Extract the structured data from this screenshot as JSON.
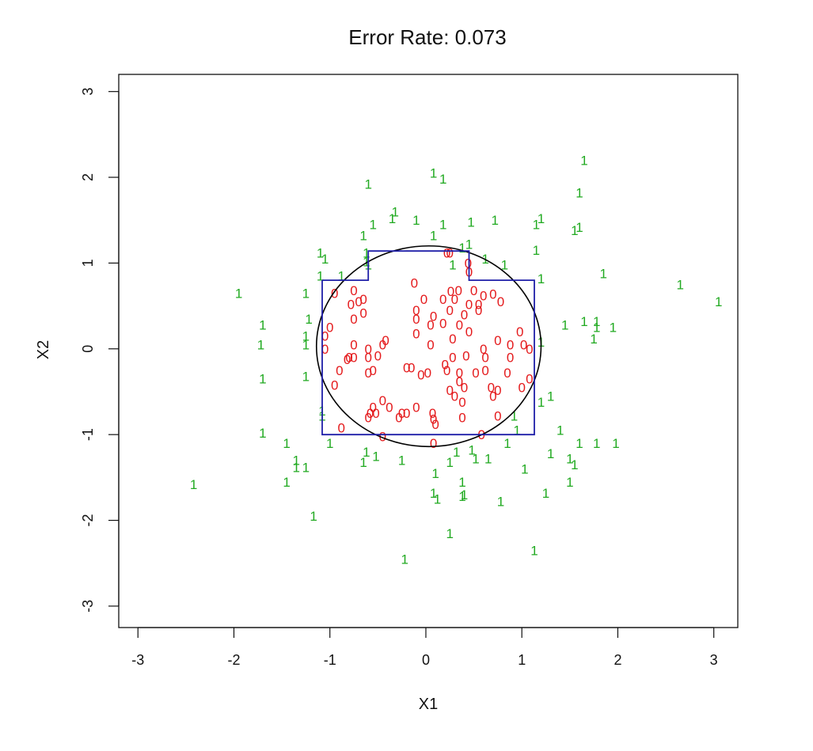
{
  "chart_data": {
    "type": "scatter",
    "title": "Error Rate: 0.073",
    "xlabel": "X1",
    "ylabel": "X2",
    "xlim": [
      -3.2,
      3.25
    ],
    "ylim": [
      -3.25,
      3.2
    ],
    "xticks": [
      "-3",
      "-2",
      "-1",
      "0",
      "1",
      "2",
      "3"
    ],
    "yticks": [
      "-3",
      "-2",
      "-1",
      "0",
      "1",
      "2",
      "3"
    ],
    "grid": false,
    "colors": {
      "class0": "#e41a1c",
      "class1": "#22aa22",
      "circle": "#000000",
      "boundary": "#1f1fa8"
    },
    "circle": {
      "cx": 0.03,
      "cy": 0.03,
      "r": 1.17
    },
    "boundary_path": [
      [
        -1.08,
        0.8
      ],
      [
        -0.6,
        0.8
      ],
      [
        -0.6,
        1.14
      ],
      [
        0.45,
        1.14
      ],
      [
        0.45,
        0.8
      ],
      [
        1.13,
        0.8
      ],
      [
        1.13,
        -1.0
      ],
      [
        -1.08,
        -1.0
      ],
      [
        -1.08,
        0.8
      ]
    ],
    "series": [
      {
        "label": "0",
        "points": [
          [
            0.22,
            1.12
          ],
          [
            0.25,
            1.12
          ],
          [
            0.44,
            1.0
          ],
          [
            0.45,
            0.9
          ],
          [
            -0.12,
            0.77
          ],
          [
            0.26,
            0.67
          ],
          [
            0.34,
            0.68
          ],
          [
            0.5,
            0.68
          ],
          [
            0.6,
            0.62
          ],
          [
            0.7,
            0.64
          ],
          [
            -0.95,
            0.65
          ],
          [
            -0.75,
            0.68
          ],
          [
            -0.65,
            0.58
          ],
          [
            -0.7,
            0.55
          ],
          [
            -0.78,
            0.52
          ],
          [
            -0.65,
            0.42
          ],
          [
            0.18,
            0.58
          ],
          [
            0.3,
            0.58
          ],
          [
            0.45,
            0.52
          ],
          [
            0.55,
            0.52
          ],
          [
            0.78,
            0.55
          ],
          [
            -0.02,
            0.58
          ],
          [
            -0.1,
            0.45
          ],
          [
            0.25,
            0.45
          ],
          [
            0.4,
            0.4
          ],
          [
            0.55,
            0.45
          ],
          [
            0.08,
            0.38
          ],
          [
            -0.1,
            0.35
          ],
          [
            -0.75,
            0.35
          ],
          [
            -1.0,
            0.25
          ],
          [
            -1.05,
            0.15
          ],
          [
            0.45,
            0.2
          ],
          [
            0.05,
            0.28
          ],
          [
            0.18,
            0.3
          ],
          [
            0.35,
            0.28
          ],
          [
            0.98,
            0.2
          ],
          [
            -0.1,
            0.18
          ],
          [
            -0.75,
            0.05
          ],
          [
            -0.6,
            0.0
          ],
          [
            -0.45,
            0.05
          ],
          [
            -0.42,
            0.1
          ],
          [
            0.05,
            0.05
          ],
          [
            0.28,
            0.12
          ],
          [
            0.75,
            0.1
          ],
          [
            0.88,
            0.05
          ],
          [
            1.02,
            0.05
          ],
          [
            1.08,
            0.0
          ],
          [
            -1.05,
            0.0
          ],
          [
            -0.8,
            -0.1
          ],
          [
            -0.75,
            -0.1
          ],
          [
            -0.6,
            -0.1
          ],
          [
            -0.5,
            -0.08
          ],
          [
            0.28,
            -0.1
          ],
          [
            0.42,
            -0.08
          ],
          [
            0.6,
            0.0
          ],
          [
            0.62,
            -0.1
          ],
          [
            0.88,
            -0.1
          ],
          [
            -0.9,
            -0.25
          ],
          [
            -0.82,
            -0.12
          ],
          [
            -0.6,
            -0.28
          ],
          [
            -0.55,
            -0.25
          ],
          [
            -0.2,
            -0.22
          ],
          [
            -0.15,
            -0.22
          ],
          [
            -0.05,
            -0.3
          ],
          [
            0.02,
            -0.28
          ],
          [
            0.2,
            -0.18
          ],
          [
            0.22,
            -0.25
          ],
          [
            0.35,
            -0.28
          ],
          [
            0.52,
            -0.28
          ],
          [
            0.62,
            -0.25
          ],
          [
            0.85,
            -0.28
          ],
          [
            1.08,
            -0.35
          ],
          [
            -0.95,
            -0.42
          ],
          [
            0.35,
            -0.38
          ],
          [
            0.4,
            -0.45
          ],
          [
            0.68,
            -0.45
          ],
          [
            0.75,
            -0.48
          ],
          [
            1.0,
            -0.45
          ],
          [
            0.25,
            -0.48
          ],
          [
            0.3,
            -0.55
          ],
          [
            0.38,
            -0.62
          ],
          [
            0.7,
            -0.55
          ],
          [
            -0.45,
            -0.6
          ],
          [
            -0.55,
            -0.68
          ],
          [
            -0.38,
            -0.68
          ],
          [
            -0.1,
            -0.68
          ],
          [
            -0.52,
            -0.75
          ],
          [
            -0.58,
            -0.75
          ],
          [
            -0.6,
            -0.8
          ],
          [
            -0.25,
            -0.75
          ],
          [
            -0.2,
            -0.75
          ],
          [
            -0.28,
            -0.8
          ],
          [
            0.07,
            -0.75
          ],
          [
            0.08,
            -0.82
          ],
          [
            0.1,
            -0.88
          ],
          [
            0.38,
            -0.8
          ],
          [
            0.75,
            -0.78
          ],
          [
            -0.88,
            -0.92
          ],
          [
            -0.45,
            -1.02
          ],
          [
            0.08,
            -1.1
          ],
          [
            0.58,
            -1.0
          ]
        ]
      },
      {
        "label": "1",
        "points": [
          [
            1.65,
            2.2
          ],
          [
            0.08,
            2.05
          ],
          [
            0.18,
            1.98
          ],
          [
            -0.6,
            1.92
          ],
          [
            1.6,
            1.82
          ],
          [
            -0.32,
            1.6
          ],
          [
            -0.35,
            1.52
          ],
          [
            -0.1,
            1.5
          ],
          [
            0.18,
            1.45
          ],
          [
            0.47,
            1.48
          ],
          [
            0.72,
            1.5
          ],
          [
            1.2,
            1.52
          ],
          [
            1.15,
            1.45
          ],
          [
            1.6,
            1.42
          ],
          [
            1.55,
            1.38
          ],
          [
            -0.55,
            1.45
          ],
          [
            -0.65,
            1.32
          ],
          [
            0.08,
            1.32
          ],
          [
            -0.62,
            1.12
          ],
          [
            1.15,
            1.15
          ],
          [
            0.38,
            1.18
          ],
          [
            0.45,
            1.22
          ],
          [
            -1.1,
            1.12
          ],
          [
            -1.05,
            1.05
          ],
          [
            -0.62,
            1.02
          ],
          [
            -0.6,
            0.98
          ],
          [
            0.62,
            1.05
          ],
          [
            0.82,
            0.98
          ],
          [
            0.28,
            0.98
          ],
          [
            -1.1,
            0.85
          ],
          [
            -0.88,
            0.85
          ],
          [
            1.2,
            0.82
          ],
          [
            1.85,
            0.88
          ],
          [
            2.65,
            0.75
          ],
          [
            3.05,
            0.55
          ],
          [
            -1.95,
            0.65
          ],
          [
            -1.25,
            0.65
          ],
          [
            -1.22,
            0.35
          ],
          [
            -1.7,
            0.28
          ],
          [
            -1.25,
            0.15
          ],
          [
            -1.72,
            0.05
          ],
          [
            -1.25,
            0.05
          ],
          [
            1.45,
            0.28
          ],
          [
            1.65,
            0.32
          ],
          [
            1.78,
            0.32
          ],
          [
            1.78,
            0.25
          ],
          [
            1.95,
            0.25
          ],
          [
            1.75,
            0.12
          ],
          [
            1.2,
            0.08
          ],
          [
            -1.7,
            -0.35
          ],
          [
            -1.25,
            -0.32
          ],
          [
            1.3,
            -0.55
          ],
          [
            1.2,
            -0.62
          ],
          [
            -1.08,
            -0.72
          ],
          [
            -1.08,
            -0.78
          ],
          [
            0.92,
            -0.78
          ],
          [
            0.95,
            -0.95
          ],
          [
            1.4,
            -0.95
          ],
          [
            -1.7,
            -0.98
          ],
          [
            -1.45,
            -1.1
          ],
          [
            -1.0,
            -1.1
          ],
          [
            -0.62,
            -1.2
          ],
          [
            -0.52,
            -1.25
          ],
          [
            -0.25,
            -1.3
          ],
          [
            0.32,
            -1.2
          ],
          [
            0.48,
            -1.18
          ],
          [
            0.52,
            -1.28
          ],
          [
            0.85,
            -1.1
          ],
          [
            1.6,
            -1.1
          ],
          [
            1.78,
            -1.1
          ],
          [
            1.98,
            -1.1
          ],
          [
            1.3,
            -1.22
          ],
          [
            1.5,
            -1.28
          ],
          [
            1.55,
            -1.35
          ],
          [
            -1.35,
            -1.3
          ],
          [
            -1.35,
            -1.38
          ],
          [
            -1.25,
            -1.38
          ],
          [
            -0.65,
            -1.32
          ],
          [
            0.25,
            -1.32
          ],
          [
            0.65,
            -1.28
          ],
          [
            0.1,
            -1.45
          ],
          [
            0.38,
            -1.55
          ],
          [
            1.03,
            -1.4
          ],
          [
            1.5,
            -1.55
          ],
          [
            -1.45,
            -1.55
          ],
          [
            -2.42,
            -1.58
          ],
          [
            0.08,
            -1.68
          ],
          [
            0.38,
            -1.72
          ],
          [
            0.4,
            -1.7
          ],
          [
            0.12,
            -1.75
          ],
          [
            1.25,
            -1.68
          ],
          [
            0.78,
            -1.78
          ],
          [
            -1.17,
            -1.95
          ],
          [
            0.25,
            -2.15
          ],
          [
            1.13,
            -2.35
          ],
          [
            -0.22,
            -2.45
          ]
        ]
      }
    ]
  }
}
